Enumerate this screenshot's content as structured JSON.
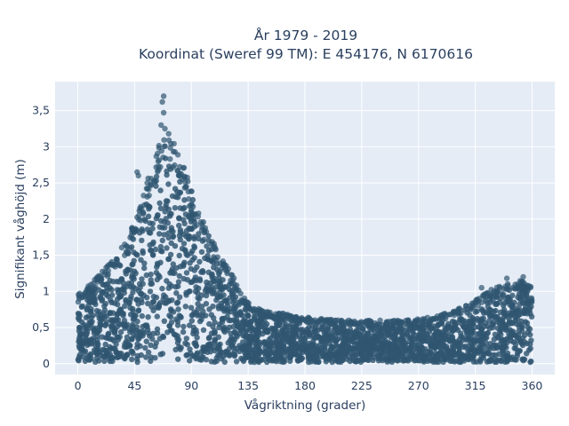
{
  "chart_data": {
    "type": "scatter",
    "title_line1": "År 1979 - 2019",
    "title_line2": "Koordinat (Sweref 99 TM): E 454176, N 6170616",
    "xlabel": "Vågriktning (grader)",
    "ylabel": "Signifikant våghöjd (m)",
    "xlim": [
      -18,
      378
    ],
    "ylim": [
      -0.15,
      3.9
    ],
    "xticks": [
      0,
      45,
      90,
      135,
      180,
      225,
      270,
      315,
      360
    ],
    "xtick_labels": [
      "0",
      "45",
      "90",
      "135",
      "180",
      "225",
      "270",
      "315",
      "360"
    ],
    "yticks": [
      0,
      0.5,
      1,
      1.5,
      2,
      2.5,
      3,
      3.5
    ],
    "ytick_labels": [
      "0",
      "0,5",
      "1",
      "1,5",
      "2",
      "2,5",
      "3",
      "3,5"
    ],
    "grid": true,
    "marker_color": "#2f5670",
    "background_color": "#e5ecf6",
    "upper_envelope": {
      "x": [
        0,
        10,
        20,
        30,
        40,
        45,
        50,
        55,
        60,
        65,
        68,
        70,
        75,
        80,
        85,
        90,
        95,
        100,
        105,
        110,
        115,
        120,
        125,
        130,
        135,
        140,
        150,
        160,
        170,
        180,
        190,
        200,
        210,
        220,
        230,
        240,
        250,
        260,
        270,
        280,
        290,
        300,
        310,
        320,
        330,
        340,
        350,
        360
      ],
      "y": [
        0.95,
        1.1,
        1.3,
        1.5,
        1.75,
        2.0,
        2.2,
        2.55,
        2.8,
        3.05,
        3.25,
        3.3,
        3.1,
        2.95,
        2.75,
        2.4,
        2.1,
        1.95,
        1.75,
        1.6,
        1.45,
        1.3,
        1.15,
        0.97,
        0.85,
        0.78,
        0.72,
        0.7,
        0.68,
        0.65,
        0.63,
        0.62,
        0.6,
        0.6,
        0.6,
        0.6,
        0.6,
        0.6,
        0.62,
        0.65,
        0.7,
        0.75,
        0.82,
        0.95,
        1.05,
        1.1,
        1.15,
        1.1
      ]
    },
    "lower_envelope": 0.02,
    "outliers": [
      {
        "x": 68,
        "y": 3.7
      },
      {
        "x": 67,
        "y": 3.62
      },
      {
        "x": 68,
        "y": 3.47
      },
      {
        "x": 66,
        "y": 3.3
      },
      {
        "x": 69,
        "y": 3.25
      },
      {
        "x": 72,
        "y": 3.18
      },
      {
        "x": 47,
        "y": 2.65
      },
      {
        "x": 55,
        "y": 2.5
      },
      {
        "x": 48,
        "y": 2.6
      },
      {
        "x": 340,
        "y": 1.18
      },
      {
        "x": 353,
        "y": 1.2
      },
      {
        "x": 320,
        "y": 1.05
      }
    ]
  }
}
